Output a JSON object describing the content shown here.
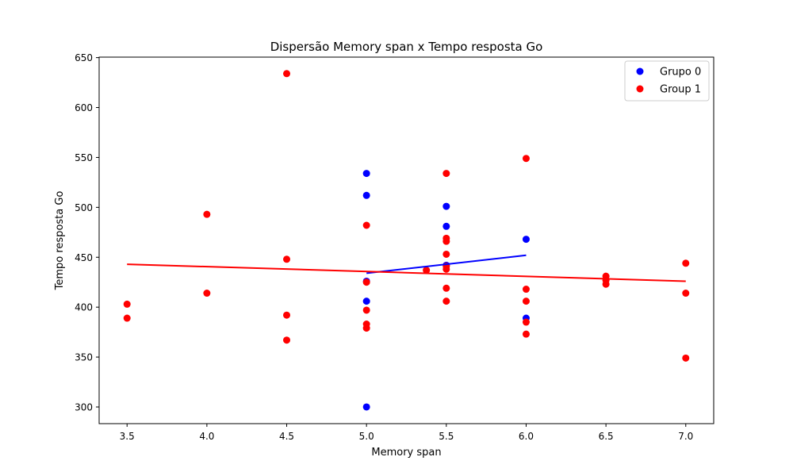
{
  "chart_data": {
    "type": "scatter",
    "title": "Dispersão Memory span x Tempo resposta Go",
    "xlabel": "Memory span",
    "ylabel": "Tempo resposta Go",
    "xlim": [
      3.325,
      7.175
    ],
    "ylim": [
      283.3,
      650.5
    ],
    "xticks": [
      3.5,
      4.0,
      4.5,
      5.0,
      5.5,
      6.0,
      6.5,
      7.0
    ],
    "xtick_labels": [
      "3.5",
      "4.0",
      "4.5",
      "5.0",
      "5.5",
      "6.0",
      "6.5",
      "7.0"
    ],
    "yticks": [
      300,
      350,
      400,
      450,
      500,
      550,
      600,
      650
    ],
    "ytick_labels": [
      "300",
      "350",
      "400",
      "450",
      "500",
      "550",
      "600",
      "650"
    ],
    "grid": false,
    "legend_position": "top-right",
    "series": [
      {
        "name": "Grupo 0",
        "color": "#0000ff",
        "points": [
          {
            "x": 5.0,
            "y": 534
          },
          {
            "x": 5.0,
            "y": 512
          },
          {
            "x": 5.0,
            "y": 426
          },
          {
            "x": 5.0,
            "y": 406
          },
          {
            "x": 5.0,
            "y": 300
          },
          {
            "x": 5.5,
            "y": 501
          },
          {
            "x": 5.5,
            "y": 481
          },
          {
            "x": 5.5,
            "y": 442
          },
          {
            "x": 6.0,
            "y": 468
          },
          {
            "x": 6.0,
            "y": 389
          }
        ],
        "trendline": {
          "x1": 5.0,
          "y1": 434,
          "x2": 6.0,
          "y2": 452
        }
      },
      {
        "name": "Group 1",
        "color": "#ff0000",
        "points": [
          {
            "x": 3.5,
            "y": 403
          },
          {
            "x": 3.5,
            "y": 389
          },
          {
            "x": 4.0,
            "y": 493
          },
          {
            "x": 4.0,
            "y": 414
          },
          {
            "x": 4.5,
            "y": 634
          },
          {
            "x": 4.5,
            "y": 448
          },
          {
            "x": 4.5,
            "y": 392
          },
          {
            "x": 4.5,
            "y": 367
          },
          {
            "x": 5.0,
            "y": 482
          },
          {
            "x": 5.0,
            "y": 425
          },
          {
            "x": 5.0,
            "y": 397
          },
          {
            "x": 5.0,
            "y": 383
          },
          {
            "x": 5.0,
            "y": 379
          },
          {
            "x": 5.5,
            "y": 534
          },
          {
            "x": 5.5,
            "y": 469
          },
          {
            "x": 5.5,
            "y": 466
          },
          {
            "x": 5.5,
            "y": 453
          },
          {
            "x": 5.5,
            "y": 441
          },
          {
            "x": 5.5,
            "y": 438
          },
          {
            "x": 5.5,
            "y": 419
          },
          {
            "x": 5.5,
            "y": 406
          },
          {
            "x": 5.375,
            "y": 437
          },
          {
            "x": 6.0,
            "y": 549
          },
          {
            "x": 6.0,
            "y": 418
          },
          {
            "x": 6.0,
            "y": 406
          },
          {
            "x": 6.0,
            "y": 385
          },
          {
            "x": 6.0,
            "y": 373
          },
          {
            "x": 6.5,
            "y": 431
          },
          {
            "x": 6.5,
            "y": 427
          },
          {
            "x": 6.5,
            "y": 423
          },
          {
            "x": 7.0,
            "y": 444
          },
          {
            "x": 7.0,
            "y": 414
          },
          {
            "x": 7.0,
            "y": 349
          }
        ],
        "trendline": {
          "x1": 3.5,
          "y1": 443,
          "x2": 7.0,
          "y2": 426
        }
      }
    ]
  }
}
